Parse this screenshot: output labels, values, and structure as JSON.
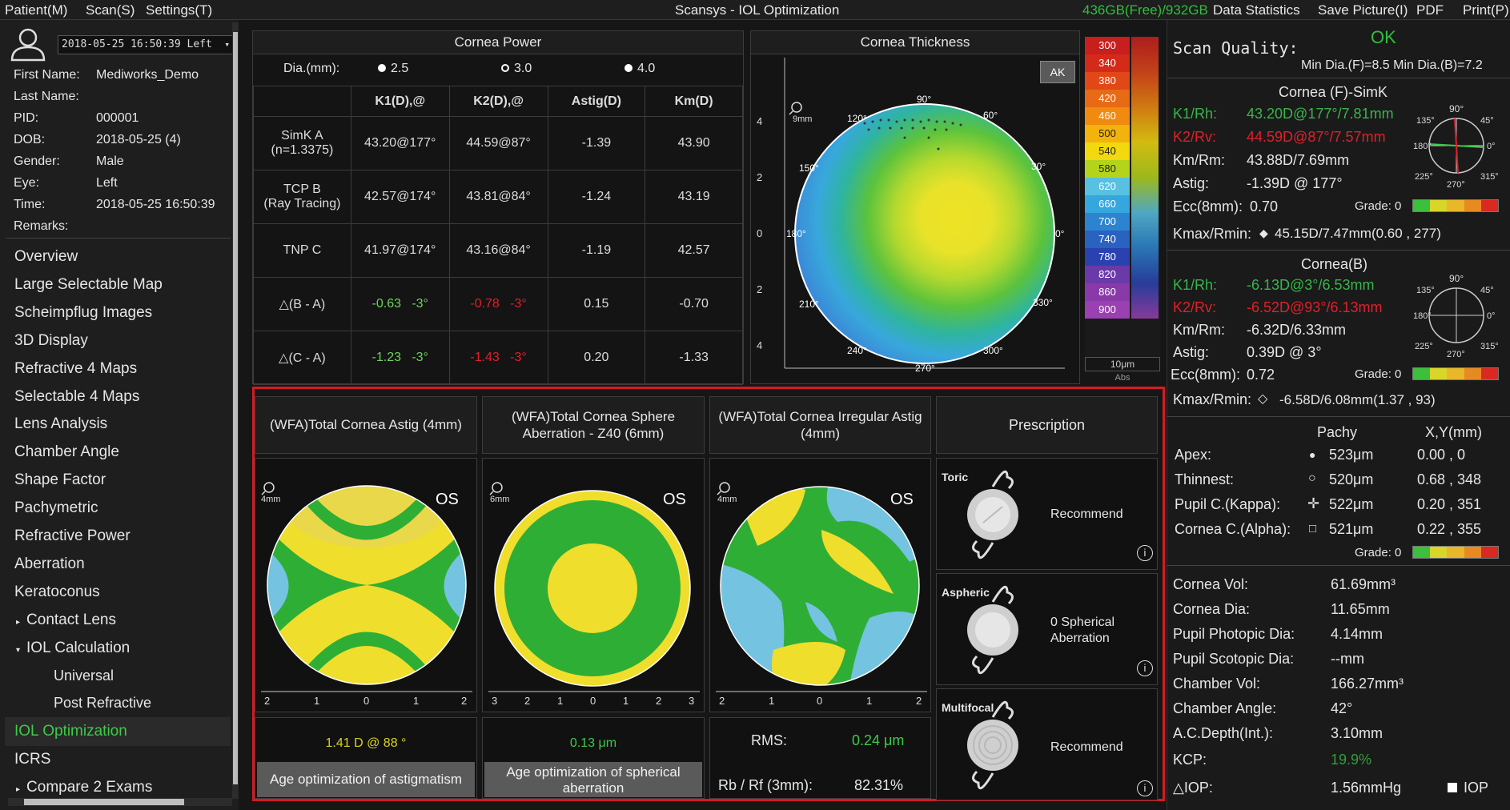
{
  "menu": {
    "patient": "Patient(M)",
    "scan": "Scan(S)",
    "settings": "Settings(T)",
    "title": "Scansys - IOL Optimization",
    "storage": "436GB(Free)/932GB",
    "data_statistics": "Data Statistics",
    "save_picture": "Save Picture(I)",
    "pdf": "PDF",
    "print": "Print(P)"
  },
  "patient": {
    "exam_select": "2018-05-25 16:50:39 Left",
    "first_name_label": "First Name:",
    "first_name": "Mediworks_Demo",
    "last_name_label": "Last Name:",
    "last_name": "",
    "pid_label": "PID:",
    "pid": "000001",
    "dob_label": "DOB:",
    "dob": "2018-05-25  (4)",
    "gender_label": "Gender:",
    "gender": "Male",
    "eye_label": "Eye:",
    "eye": "Left",
    "time_label": "Time:",
    "time": "2018-05-25 16:50:39",
    "remarks_label": "Remarks:"
  },
  "nav": [
    "Overview",
    "Large Selectable Map",
    "Scheimpflug Images",
    "3D Display",
    "Refractive 4 Maps",
    "Selectable 4 Maps",
    "Lens Analysis",
    "Chamber Angle",
    "Shape Factor",
    "Pachymetric",
    "Refractive Power",
    "Aberration",
    "Keratoconus",
    "Contact Lens",
    "IOL Calculation",
    "Universal",
    "Post Refractive",
    "IOL Optimization",
    "ICRS",
    "Compare 2 Exams"
  ],
  "cornea_power": {
    "title": "Cornea Power",
    "dia_label": "Dia.(mm):",
    "dia_options": [
      "2.5",
      "3.0",
      "4.0"
    ],
    "headers": [
      "K1(D),@",
      "K2(D),@",
      "Astig(D)",
      "Km(D)"
    ],
    "rows": [
      {
        "label": "SimK A\n(n=1.3375)",
        "k1": "43.20@177°",
        "k2": "44.59@87°",
        "astig": "-1.39",
        "km": "43.90"
      },
      {
        "label": "TCP B\n(Ray Tracing)",
        "k1": "42.57@174°",
        "k2": "43.81@84°",
        "astig": "-1.24",
        "km": "43.19"
      },
      {
        "label": "TNP C",
        "k1": "41.97@174°",
        "k2": "43.16@84°",
        "astig": "-1.19",
        "km": "42.57"
      }
    ],
    "diff_rows": [
      {
        "label": "△(B - A)",
        "k1": "-0.63",
        "k1a": "-3°",
        "k2": "-0.78",
        "k2a": "-3°",
        "astig": "0.15",
        "km": "-0.70"
      },
      {
        "label": "△(C - A)",
        "k1": "-1.23",
        "k1a": "-3°",
        "k2": "-1.43",
        "k2a": "-3°",
        "astig": "0.20",
        "km": "-1.33"
      }
    ]
  },
  "thickness": {
    "title": "Cornea Thickness",
    "ak": "AK",
    "zoom": "9mm",
    "angles": [
      "90°",
      "60°",
      "30°",
      "0°",
      "330°",
      "300°",
      "270°",
      "240°",
      "210°",
      "180°",
      "150°",
      "120°"
    ],
    "yticks": [
      "4",
      "2",
      "0",
      "2",
      "4"
    ],
    "xticks": [
      "4",
      "2",
      "0",
      "2",
      "4"
    ]
  },
  "scale": {
    "values": [
      "300",
      "340",
      "380",
      "420",
      "460",
      "500",
      "540",
      "580",
      "620",
      "660",
      "700",
      "740",
      "780",
      "820",
      "860",
      "900"
    ],
    "colors": [
      "#c81e1e",
      "#d42a1a",
      "#e04818",
      "#e86a14",
      "#f08a10",
      "#f2b40c",
      "#f2d80e",
      "#b4d41c",
      "#58c0e0",
      "#36a6de",
      "#2c84d0",
      "#2a62c0",
      "#2a42b0",
      "#6a3aa8",
      "#8a3aa8",
      "#9a40b0"
    ],
    "unit": "10μm",
    "abs": "Abs"
  },
  "wfa": {
    "headers": [
      "(WFA)Total Cornea Astig (4mm)",
      "(WFA)Total Cornea Sphere Aberration - Z40 (6mm)",
      "(WFA)Total Cornea Irregular Astig (4mm)",
      "Prescription"
    ],
    "maps": [
      {
        "zoom": "4mm",
        "eye": "OS",
        "ticks": [
          "2",
          "1",
          "0",
          "1",
          "2"
        ]
      },
      {
        "zoom": "6mm",
        "eye": "OS",
        "ticks": [
          "3",
          "2",
          "1",
          "0",
          "1",
          "2",
          "3"
        ]
      },
      {
        "zoom": "4mm",
        "eye": "OS",
        "ticks": [
          "2",
          "1",
          "0",
          "1",
          "2"
        ]
      }
    ],
    "astig_value": "1.41 D @ 88 °",
    "sphere_value": "0.13 μm",
    "rms_label": "RMS:",
    "rms_value": "0.24 μm",
    "rb_label": "Rb / Rf (3mm):",
    "rb_value": "82.31%",
    "btn_astig": "Age optimization of astigmatism",
    "btn_sphere": "Age optimization of spherical aberration",
    "rx": [
      {
        "type": "Toric",
        "text": "Recommend"
      },
      {
        "type": "Aspheric",
        "text": "0 Spherical Aberration"
      },
      {
        "type": "Multifocal",
        "text": "Recommend"
      }
    ]
  },
  "right": {
    "scan_quality_label": "Scan Quality:",
    "scan_quality": "OK",
    "min_dia": "Min Dia.(F)=8.5  Min Dia.(B)=7.2",
    "front_title": "Cornea (F)-SimK",
    "k1_label": "K1/Rh:",
    "k1": "43.20D@177°/7.81mm",
    "k2_label": "K2/Rv:",
    "k2": "44.59D@87°/7.57mm",
    "km_label": "Km/Rm:",
    "km": "43.88D/7.69mm",
    "astig_label": "Astig:",
    "astig": "-1.39D @ 177°",
    "ecc_label": "Ecc(8mm):",
    "ecc": "0.70",
    "grade_label": "Grade: 0",
    "kmax_label": "Kmax/Rmin:",
    "kmax": "45.15D/7.47mm(0.60 , 277)",
    "back_title": "Cornea(B)",
    "bk1": "-6.13D@3°/6.53mm",
    "bk2": "-6.52D@93°/6.13mm",
    "bkm": "-6.32D/6.33mm",
    "bastig": "0.39D @ 3°",
    "becc": "0.72",
    "bkmax": "-6.58D/6.08mm(1.37 , 93)",
    "dial_labels": [
      "90°",
      "45°",
      "0°",
      "315°",
      "270°",
      "225°",
      "180°",
      "135°"
    ],
    "pachy_header": "Pachy",
    "xy_header": "X,Y(mm)",
    "pachy": [
      {
        "label": "Apex:",
        "v": "523μm",
        "xy": "0.00 , 0"
      },
      {
        "label": "Thinnest:",
        "v": "520μm",
        "xy": "0.68 , 348"
      },
      {
        "label": "Pupil C.(Kappa):",
        "v": "522μm",
        "xy": "0.20 , 351"
      },
      {
        "label": "Cornea C.(Alpha):",
        "v": "521μm",
        "xy": "0.22 , 355"
      }
    ],
    "stats": [
      {
        "label": "Cornea Vol:",
        "v": "61.69mm³"
      },
      {
        "label": "Cornea Dia:",
        "v": "11.65mm"
      },
      {
        "label": "Pupil Photopic Dia:",
        "v": "4.14mm"
      },
      {
        "label": "Pupil Scotopic Dia:",
        "v": "--mm"
      },
      {
        "label": "Chamber Vol:",
        "v": "166.27mm³"
      },
      {
        "label": "Chamber Angle:",
        "v": "42°"
      },
      {
        "label": "A.C.Depth(Int.):",
        "v": "3.10mm"
      },
      {
        "label": "KCP:",
        "v": "19.9%"
      },
      {
        "label": "△IOP:",
        "v": "1.56mmHg"
      }
    ],
    "iop": "IOP"
  }
}
